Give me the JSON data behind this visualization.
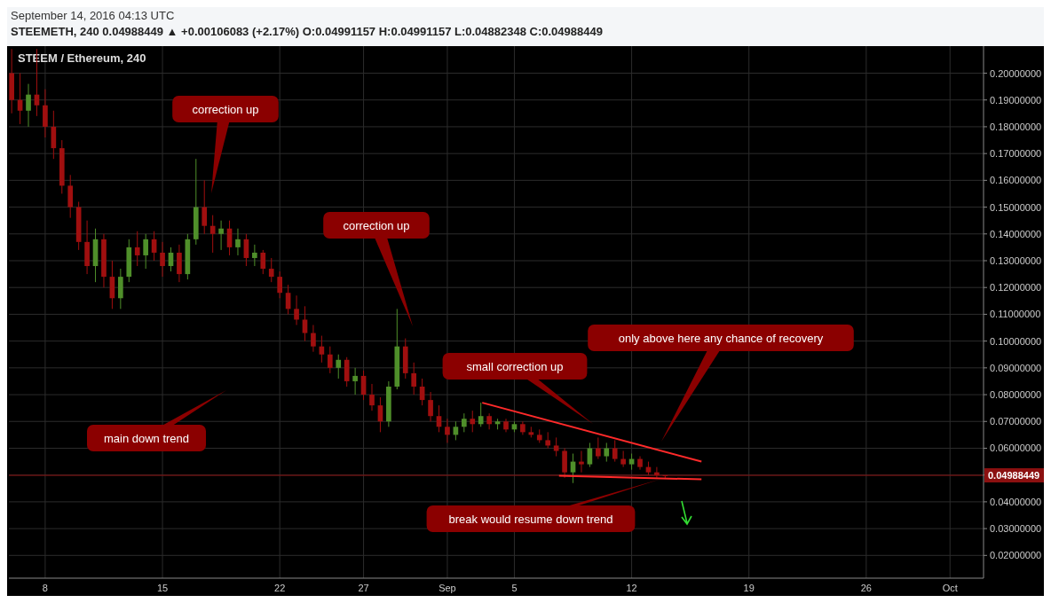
{
  "chart_data": {
    "type": "candlestick",
    "title": "STEEM / Ethereum, 240",
    "subtitle": "STEEMETH, 240  0.04988449 ▲ +0.00106083 (+2.17%)  O:0.04991157  H:0.04991157  L:0.04882348  C:0.04988449",
    "x": [
      "2016-08-06T00:00",
      "2016-08-06T12:00",
      "2016-08-07T00:00",
      "2016-08-07T12:00",
      "2016-08-08T00:00",
      "2016-08-08T12:00",
      "2016-08-09T00:00",
      "2016-08-09T12:00",
      "2016-08-10T00:00",
      "2016-08-10T12:00",
      "2016-08-11T00:00",
      "2016-08-11T12:00",
      "2016-08-12T00:00",
      "2016-08-12T12:00",
      "2016-08-13T00:00",
      "2016-08-13T12:00",
      "2016-08-14T00:00",
      "2016-08-14T12:00",
      "2016-08-15T00:00",
      "2016-08-15T12:00",
      "2016-08-16T00:00",
      "2016-08-16T12:00",
      "2016-08-17T00:00",
      "2016-08-17T12:00",
      "2016-08-18T00:00",
      "2016-08-18T12:00",
      "2016-08-19T00:00",
      "2016-08-19T12:00",
      "2016-08-20T00:00",
      "2016-08-20T12:00",
      "2016-08-21T00:00",
      "2016-08-21T12:00",
      "2016-08-22T00:00",
      "2016-08-22T12:00",
      "2016-08-23T00:00",
      "2016-08-23T12:00",
      "2016-08-24T00:00",
      "2016-08-24T12:00",
      "2016-08-25T00:00",
      "2016-08-25T12:00",
      "2016-08-26T00:00",
      "2016-08-26T12:00",
      "2016-08-27T00:00",
      "2016-08-27T12:00",
      "2016-08-28T00:00",
      "2016-08-28T12:00",
      "2016-08-29T00:00",
      "2016-08-29T12:00",
      "2016-08-30T00:00",
      "2016-08-30T12:00",
      "2016-08-31T00:00",
      "2016-08-31T12:00",
      "2016-09-01T00:00",
      "2016-09-01T12:00",
      "2016-09-02T00:00",
      "2016-09-02T12:00",
      "2016-09-03T00:00",
      "2016-09-03T12:00",
      "2016-09-04T00:00",
      "2016-09-04T12:00",
      "2016-09-05T00:00",
      "2016-09-05T12:00",
      "2016-09-06T00:00",
      "2016-09-06T12:00",
      "2016-09-07T00:00",
      "2016-09-07T12:00",
      "2016-09-08T00:00",
      "2016-09-08T12:00",
      "2016-09-09T00:00",
      "2016-09-09T12:00",
      "2016-09-10T00:00",
      "2016-09-10T12:00",
      "2016-09-11T00:00",
      "2016-09-11T12:00",
      "2016-09-12T00:00",
      "2016-09-12T12:00",
      "2016-09-13T00:00",
      "2016-09-13T12:00",
      "2016-09-14T00:00"
    ],
    "ohlc": [
      [
        0.2,
        0.209,
        0.185,
        0.19
      ],
      [
        0.19,
        0.2,
        0.181,
        0.186
      ],
      [
        0.186,
        0.196,
        0.18,
        0.192
      ],
      [
        0.192,
        0.209,
        0.184,
        0.188
      ],
      [
        0.188,
        0.194,
        0.176,
        0.18
      ],
      [
        0.18,
        0.186,
        0.168,
        0.172
      ],
      [
        0.172,
        0.175,
        0.155,
        0.158
      ],
      [
        0.158,
        0.162,
        0.146,
        0.15
      ],
      [
        0.15,
        0.152,
        0.134,
        0.137
      ],
      [
        0.137,
        0.145,
        0.125,
        0.128
      ],
      [
        0.128,
        0.142,
        0.122,
        0.138
      ],
      [
        0.138,
        0.14,
        0.12,
        0.124
      ],
      [
        0.124,
        0.13,
        0.112,
        0.116
      ],
      [
        0.116,
        0.127,
        0.112,
        0.124
      ],
      [
        0.124,
        0.138,
        0.122,
        0.135
      ],
      [
        0.135,
        0.141,
        0.128,
        0.132
      ],
      [
        0.132,
        0.14,
        0.127,
        0.138
      ],
      [
        0.138,
        0.141,
        0.13,
        0.133
      ],
      [
        0.133,
        0.137,
        0.124,
        0.128
      ],
      [
        0.128,
        0.135,
        0.126,
        0.133
      ],
      [
        0.133,
        0.136,
        0.122,
        0.125
      ],
      [
        0.125,
        0.14,
        0.123,
        0.138
      ],
      [
        0.138,
        0.168,
        0.136,
        0.15
      ],
      [
        0.15,
        0.16,
        0.14,
        0.143
      ],
      [
        0.143,
        0.147,
        0.133,
        0.14
      ],
      [
        0.14,
        0.145,
        0.134,
        0.142
      ],
      [
        0.142,
        0.145,
        0.132,
        0.135
      ],
      [
        0.135,
        0.142,
        0.132,
        0.138
      ],
      [
        0.138,
        0.14,
        0.128,
        0.131
      ],
      [
        0.131,
        0.136,
        0.128,
        0.133
      ],
      [
        0.133,
        0.134,
        0.125,
        0.127
      ],
      [
        0.127,
        0.131,
        0.122,
        0.124
      ],
      [
        0.124,
        0.126,
        0.116,
        0.118
      ],
      [
        0.118,
        0.121,
        0.11,
        0.112
      ],
      [
        0.112,
        0.117,
        0.106,
        0.108
      ],
      [
        0.108,
        0.113,
        0.1,
        0.103
      ],
      [
        0.103,
        0.106,
        0.096,
        0.098
      ],
      [
        0.098,
        0.102,
        0.092,
        0.095
      ],
      [
        0.095,
        0.098,
        0.088,
        0.09
      ],
      [
        0.09,
        0.095,
        0.086,
        0.093
      ],
      [
        0.093,
        0.094,
        0.083,
        0.085
      ],
      [
        0.085,
        0.09,
        0.08,
        0.087
      ],
      [
        0.087,
        0.089,
        0.078,
        0.08
      ],
      [
        0.08,
        0.084,
        0.074,
        0.076
      ],
      [
        0.076,
        0.079,
        0.066,
        0.07
      ],
      [
        0.07,
        0.085,
        0.068,
        0.083
      ],
      [
        0.083,
        0.112,
        0.082,
        0.098
      ],
      [
        0.098,
        0.101,
        0.086,
        0.088
      ],
      [
        0.088,
        0.092,
        0.08,
        0.083
      ],
      [
        0.083,
        0.086,
        0.076,
        0.078
      ],
      [
        0.078,
        0.081,
        0.07,
        0.072
      ],
      [
        0.072,
        0.076,
        0.066,
        0.068
      ],
      [
        0.068,
        0.071,
        0.062,
        0.065
      ],
      [
        0.065,
        0.07,
        0.063,
        0.068
      ],
      [
        0.068,
        0.073,
        0.066,
        0.071
      ],
      [
        0.071,
        0.074,
        0.066,
        0.069
      ],
      [
        0.069,
        0.077,
        0.068,
        0.072
      ],
      [
        0.072,
        0.073,
        0.067,
        0.069
      ],
      [
        0.069,
        0.071,
        0.067,
        0.07
      ],
      [
        0.07,
        0.071,
        0.066,
        0.067
      ],
      [
        0.067,
        0.07,
        0.066,
        0.069
      ],
      [
        0.069,
        0.07,
        0.065,
        0.066
      ],
      [
        0.066,
        0.068,
        0.064,
        0.065
      ],
      [
        0.065,
        0.067,
        0.062,
        0.063
      ],
      [
        0.063,
        0.066,
        0.06,
        0.061
      ],
      [
        0.061,
        0.064,
        0.057,
        0.059
      ],
      [
        0.059,
        0.06,
        0.049,
        0.051
      ],
      [
        0.051,
        0.058,
        0.047,
        0.055
      ],
      [
        0.055,
        0.059,
        0.051,
        0.054
      ],
      [
        0.054,
        0.062,
        0.053,
        0.06
      ],
      [
        0.06,
        0.064,
        0.056,
        0.057
      ],
      [
        0.057,
        0.062,
        0.055,
        0.06
      ],
      [
        0.06,
        0.063,
        0.055,
        0.056
      ],
      [
        0.056,
        0.059,
        0.053,
        0.054
      ],
      [
        0.054,
        0.058,
        0.052,
        0.056
      ],
      [
        0.056,
        0.057,
        0.052,
        0.053
      ],
      [
        0.053,
        0.055,
        0.05,
        0.051
      ],
      [
        0.051,
        0.053,
        0.049,
        0.0499
      ],
      [
        0.04991157,
        0.04991157,
        0.04882348,
        0.04988449
      ]
    ],
    "series": [
      {
        "type": "line",
        "color": "#ff2a2a",
        "x": [
          "2016-09-03T02:00",
          "2016-09-16T04:00"
        ],
        "values": [
          0.077,
          0.055
        ]
      },
      {
        "type": "line",
        "color": "#ff2a2a",
        "x": [
          "2016-09-07T16:00",
          "2016-09-16T04:00"
        ],
        "values": [
          0.0497,
          0.0484
        ]
      }
    ],
    "ref_lines": [
      {
        "axis": "y",
        "value": 0.04988449,
        "label": "0.04988449",
        "color": "#8b1010"
      }
    ],
    "annotations": [
      "September 14, 2016 04:13 UTC",
      "correction up",
      "correction up",
      "small correction up",
      "only above here any chance of recovery",
      "main down trend",
      "break would resume down trend"
    ],
    "xlim": [
      "2016-08-05T20:00",
      "2016-10-03T00:00"
    ],
    "xticks": [
      {
        "value": "2016-08-08",
        "label": "8"
      },
      {
        "value": "2016-08-15",
        "label": "15"
      },
      {
        "value": "2016-08-22",
        "label": "22"
      },
      {
        "value": "2016-08-27",
        "label": "27"
      },
      {
        "value": "2016-09-01",
        "label": "Sep"
      },
      {
        "value": "2016-09-05",
        "label": "5"
      },
      {
        "value": "2016-09-12",
        "label": "12"
      },
      {
        "value": "2016-09-19",
        "label": "19"
      },
      {
        "value": "2016-09-26",
        "label": "26"
      },
      {
        "value": "2016-10-01",
        "label": "Oct"
      }
    ],
    "ylim": [
      0.0115,
      0.2101
    ],
    "yticks": [
      {
        "value": 0.02,
        "label": "0.02000000"
      },
      {
        "value": 0.03,
        "label": "0.03000000"
      },
      {
        "value": 0.04,
        "label": "0.04000000"
      },
      {
        "value": 0.05,
        "label": null
      },
      {
        "value": 0.06,
        "label": "0.06000000"
      },
      {
        "value": 0.07,
        "label": "0.07000000"
      },
      {
        "value": 0.08,
        "label": "0.08000000"
      },
      {
        "value": 0.09,
        "label": "0.09000000"
      },
      {
        "value": 0.1,
        "label": "0.10000000"
      },
      {
        "value": 0.11,
        "label": "0.11000000"
      },
      {
        "value": 0.12,
        "label": "0.12000000"
      },
      {
        "value": 0.13,
        "label": "0.13000000"
      },
      {
        "value": 0.14,
        "label": "0.14000000"
      },
      {
        "value": 0.15,
        "label": "0.15000000"
      },
      {
        "value": 0.16,
        "label": "0.16000000"
      },
      {
        "value": 0.17,
        "label": "0.17000000"
      },
      {
        "value": 0.18,
        "label": "0.18000000"
      },
      {
        "value": 0.19,
        "label": "0.19000000"
      },
      {
        "value": 0.2,
        "label": "0.20000000"
      }
    ],
    "grid": true
  }
}
